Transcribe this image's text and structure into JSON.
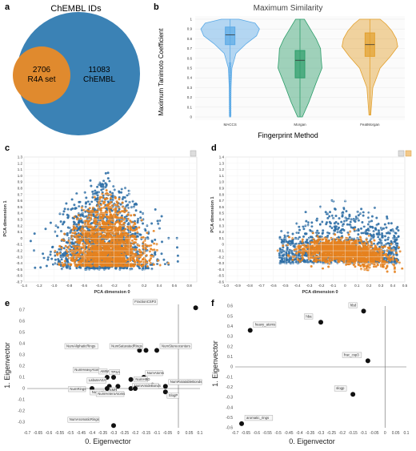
{
  "panels": {
    "a": {
      "label": "a",
      "title": "ChEMBL IDs",
      "r4a_count": "2706",
      "r4a_name": "R4A set",
      "chembl_count": "11083",
      "chembl_name": "ChEMBL",
      "colors": {
        "outer": "#3b82b5",
        "inner": "#e08a2e"
      }
    },
    "b": {
      "label": "b",
      "title": "Maximum Similarity",
      "xlabel": "Fingerprint Method",
      "ylabel": "Maximum Tanimoto Coefficient",
      "yticks": [
        "0",
        "0.1",
        "0.2",
        "0.3",
        "0.4",
        "0.5",
        "0.6",
        "0.7",
        "0.8",
        "0.9",
        "1"
      ],
      "categories": [
        "MACCS",
        "Morgan",
        "FeatMorgan"
      ]
    },
    "c": {
      "label": "c",
      "xlabel": "PCA dimension 0",
      "ylabel": "PCA dimension 1",
      "xticks": [
        "-1.4",
        "-1.2",
        "-1.0",
        "-0.8",
        "-0.6",
        "-0.4",
        "-0.2",
        "0",
        "0.2",
        "0.4",
        "0.6",
        "0.8"
      ],
      "yticks": [
        "-0.7",
        "-0.6",
        "-0.5",
        "-0.4",
        "-0.3",
        "-0.2",
        "-0.1",
        "0",
        "0.1",
        "0.2",
        "0.3",
        "0.4",
        "0.5",
        "0.6",
        "0.7",
        "0.8",
        "0.9",
        "1.0",
        "1.1",
        "1.2",
        "1.3"
      ]
    },
    "d": {
      "label": "d",
      "xlabel": "PCA dimension 0",
      "ylabel": "PCA dimension 1",
      "xticks": [
        "-1.0",
        "-0.9",
        "-0.8",
        "-0.7",
        "-0.6",
        "-0.5",
        "-0.4",
        "-0.3",
        "-0.2",
        "-0.1",
        "0",
        "0.1",
        "0.2",
        "0.3",
        "0.4",
        "0.5"
      ],
      "yticks": [
        "-0.6",
        "-0.5",
        "-0.4",
        "-0.3",
        "-0.2",
        "-0.1",
        "0",
        "0.1",
        "0.2",
        "0.3",
        "0.4",
        "0.5",
        "0.6",
        "0.7",
        "0.8",
        "0.9",
        "1.0",
        "1.1",
        "1.2",
        "1.3",
        "1.4"
      ]
    },
    "e": {
      "label": "e",
      "xlabel": "0. Eigenvector",
      "ylabel": "1. Eigenvector",
      "xticks": [
        "-0.7",
        "-0.65",
        "-0.6",
        "-0.55",
        "-0.5",
        "-0.45",
        "-0.4",
        "-0.35",
        "-0.3",
        "-0.25",
        "-0.2",
        "-0.15",
        "-0.1",
        "-0.05",
        "0",
        "0.05",
        "0.1"
      ],
      "yticks": [
        "-0.3",
        "-0.2",
        "-0.1",
        "0",
        "0.1",
        "0.2",
        "0.3",
        "0.4",
        "0.5",
        "0.6",
        "0.7"
      ]
    },
    "f": {
      "label": "f",
      "xlabel": "0. Eigenvector",
      "ylabel": "1. Eigenvector",
      "xticks": [
        "-0.7",
        "-0.65",
        "-0.6",
        "-0.55",
        "-0.5",
        "-0.45",
        "-0.4",
        "-0.35",
        "-0.3",
        "-0.25",
        "-0.2",
        "-0.15",
        "-0.1",
        "-0.05",
        "0",
        "0.05",
        "0.1"
      ],
      "yticks": [
        "-0.6",
        "-0.5",
        "-0.4",
        "-0.3",
        "-0.2",
        "-0.1",
        "0",
        "0.1",
        "0.2",
        "0.3",
        "0.4",
        "0.5",
        "0.6"
      ]
    }
  },
  "chart_data": [
    {
      "type": "venn",
      "title": "ChEMBL IDs",
      "sets": [
        {
          "label": "ChEMBL",
          "size": 11083
        },
        {
          "label": "R4A set",
          "size": 2706
        }
      ]
    },
    {
      "type": "violin",
      "title": "Maximum Similarity",
      "xlabel": "Fingerprint Method",
      "ylabel": "Maximum Tanimoto Coefficient",
      "ylim": [
        0,
        1
      ],
      "categories": [
        "MACCS",
        "Morgan",
        "FeatMorgan"
      ],
      "colors": [
        "#5aa9e6",
        "#2e9e6b",
        "#e3a02c"
      ],
      "series": [
        {
          "category": "MACCS",
          "min": 0,
          "q1": 0.74,
          "median": 0.84,
          "q3": 0.92,
          "max": 1
        },
        {
          "category": "Morgan",
          "min": 0,
          "q1": 0.4,
          "median": 0.58,
          "q3": 0.68,
          "max": 1
        },
        {
          "category": "FeatMorgan",
          "min": 0.02,
          "q1": 0.62,
          "median": 0.74,
          "q3": 0.86,
          "max": 1
        }
      ]
    },
    {
      "type": "scatter",
      "xlabel": "PCA dimension 0",
      "ylabel": "PCA dimension 1",
      "xlim": [
        -1.4,
        0.9
      ],
      "ylim": [
        -0.7,
        1.3
      ],
      "colors": {
        "chembl": "#2f6fa6",
        "r4a": "#e6821f"
      }
    },
    {
      "type": "scatter",
      "xlabel": "PCA dimension 0",
      "ylabel": "PCA dimension 1",
      "xlim": [
        -1.0,
        0.5
      ],
      "ylim": [
        -0.6,
        1.4
      ],
      "colors": {
        "chembl": "#2f6fa6",
        "r4a": "#e6821f"
      }
    },
    {
      "type": "scatter",
      "xlabel": "0. Eigenvector",
      "ylabel": "1. Eigenvector",
      "xlim": [
        -0.7,
        0.1
      ],
      "ylim": [
        -0.35,
        0.75
      ],
      "points": [
        {
          "label": "FractionCSP3",
          "x": 0.08,
          "y": 0.72
        },
        {
          "label": "NumAliphaticRings",
          "x": -0.18,
          "y": 0.34
        },
        {
          "label": "NumSaturatedRings",
          "x": -0.15,
          "y": 0.34
        },
        {
          "label": "NumStereocenters",
          "x": -0.1,
          "y": 0.34
        },
        {
          "label": "NumHeavyAtoms",
          "x": -0.33,
          "y": 0.1
        },
        {
          "label": "AMW",
          "x": -0.3,
          "y": 0.1
        },
        {
          "label": "TPSA",
          "x": -0.22,
          "y": 0.08
        },
        {
          "label": "NumAtoms",
          "x": -0.16,
          "y": 0.1
        },
        {
          "label": "LabuteASA",
          "x": -0.32,
          "y": 0.02
        },
        {
          "label": "NumHBD",
          "x": -0.12,
          "y": 0.03
        },
        {
          "label": "NumRotatableBonds",
          "x": -0.06,
          "y": 0.02
        },
        {
          "label": "SMR",
          "x": -0.28,
          "y": 0.02
        },
        {
          "label": "NumRings",
          "x": -0.4,
          "y": 0.0
        },
        {
          "label": "NumHBA",
          "x": -0.33,
          "y": 0.0
        },
        {
          "label": "NumAmideBonds",
          "x": -0.22,
          "y": 0.0
        },
        {
          "label": "NumHeteroAtoms",
          "x": -0.2,
          "y": 0.0
        },
        {
          "label": "SlogP",
          "x": -0.06,
          "y": -0.03
        },
        {
          "label": "NumAromaticRings",
          "x": -0.3,
          "y": -0.33
        }
      ]
    },
    {
      "type": "scatter",
      "xlabel": "0. Eigenvector",
      "ylabel": "1. Eigenvector",
      "xlim": [
        -0.7,
        0.1
      ],
      "ylim": [
        -0.6,
        0.6
      ],
      "points": [
        {
          "label": "heavy_atoms",
          "x": -0.63,
          "y": 0.36
        },
        {
          "label": "hba",
          "x": -0.3,
          "y": 0.44
        },
        {
          "label": "hbd",
          "x": -0.1,
          "y": 0.55
        },
        {
          "label": "frac_csp3",
          "x": -0.08,
          "y": 0.06
        },
        {
          "label": "slogp",
          "x": -0.15,
          "y": -0.27
        },
        {
          "label": "aromatic_rings",
          "x": -0.67,
          "y": -0.56
        }
      ]
    }
  ]
}
